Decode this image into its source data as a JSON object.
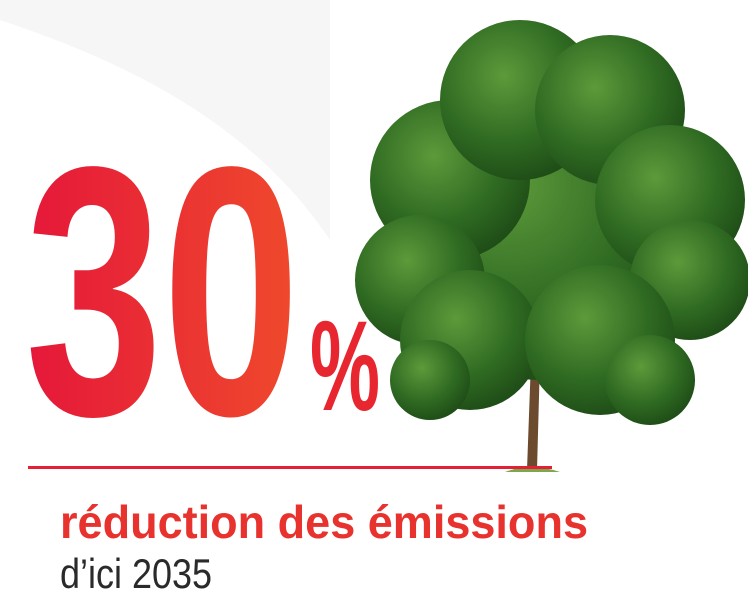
{
  "headline": {
    "number": "30",
    "unit": "%"
  },
  "caption": {
    "title": "réduction des émissions",
    "subtitle": "d’ici 2035"
  }
}
